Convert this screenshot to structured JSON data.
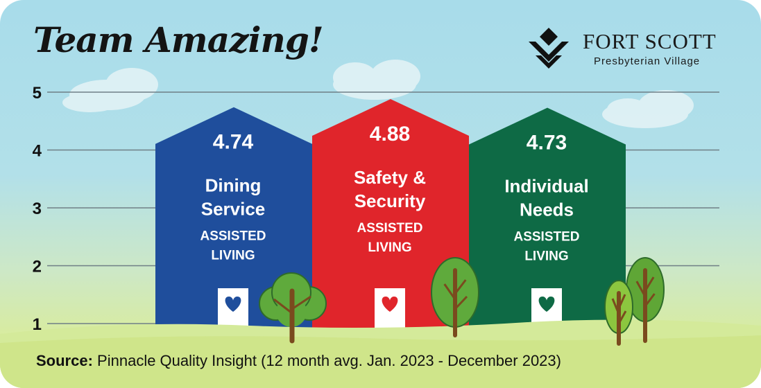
{
  "title": "Team Amazing!",
  "brand": {
    "name": "FORT SCOTT",
    "subtitle": "Presbyterian Village"
  },
  "source": {
    "label": "Source:",
    "text": "Pinnacle Quality Insight (12 month avg. Jan. 2023 - December 2023)"
  },
  "colors": {
    "dining": "#1f4e9c",
    "safety": "#e0252b",
    "individual": "#0e6a45",
    "heart_dining": "#1f4e9c",
    "heart_safety": "#e0252b",
    "heart_individual": "#0e6a45"
  },
  "chart_data": {
    "type": "bar",
    "ylim": [
      1,
      5
    ],
    "yticks": [
      "1",
      "2",
      "3",
      "4",
      "5"
    ],
    "grid": true,
    "bars": [
      {
        "value": "4.74",
        "name": "Dining Service",
        "line1": "Dining",
        "line2": "Service",
        "sub1": "ASSISTED",
        "sub2": "LIVING",
        "color_key": "dining"
      },
      {
        "value": "4.88",
        "name": "Safety & Security",
        "line1": "Safety &",
        "line2": "Security",
        "sub1": "ASSISTED",
        "sub2": "LIVING",
        "color_key": "safety"
      },
      {
        "value": "4.73",
        "name": "Individual Needs",
        "line1": "Individual",
        "line2": "Needs",
        "sub1": "ASSISTED",
        "sub2": "LIVING",
        "color_key": "individual"
      }
    ]
  }
}
